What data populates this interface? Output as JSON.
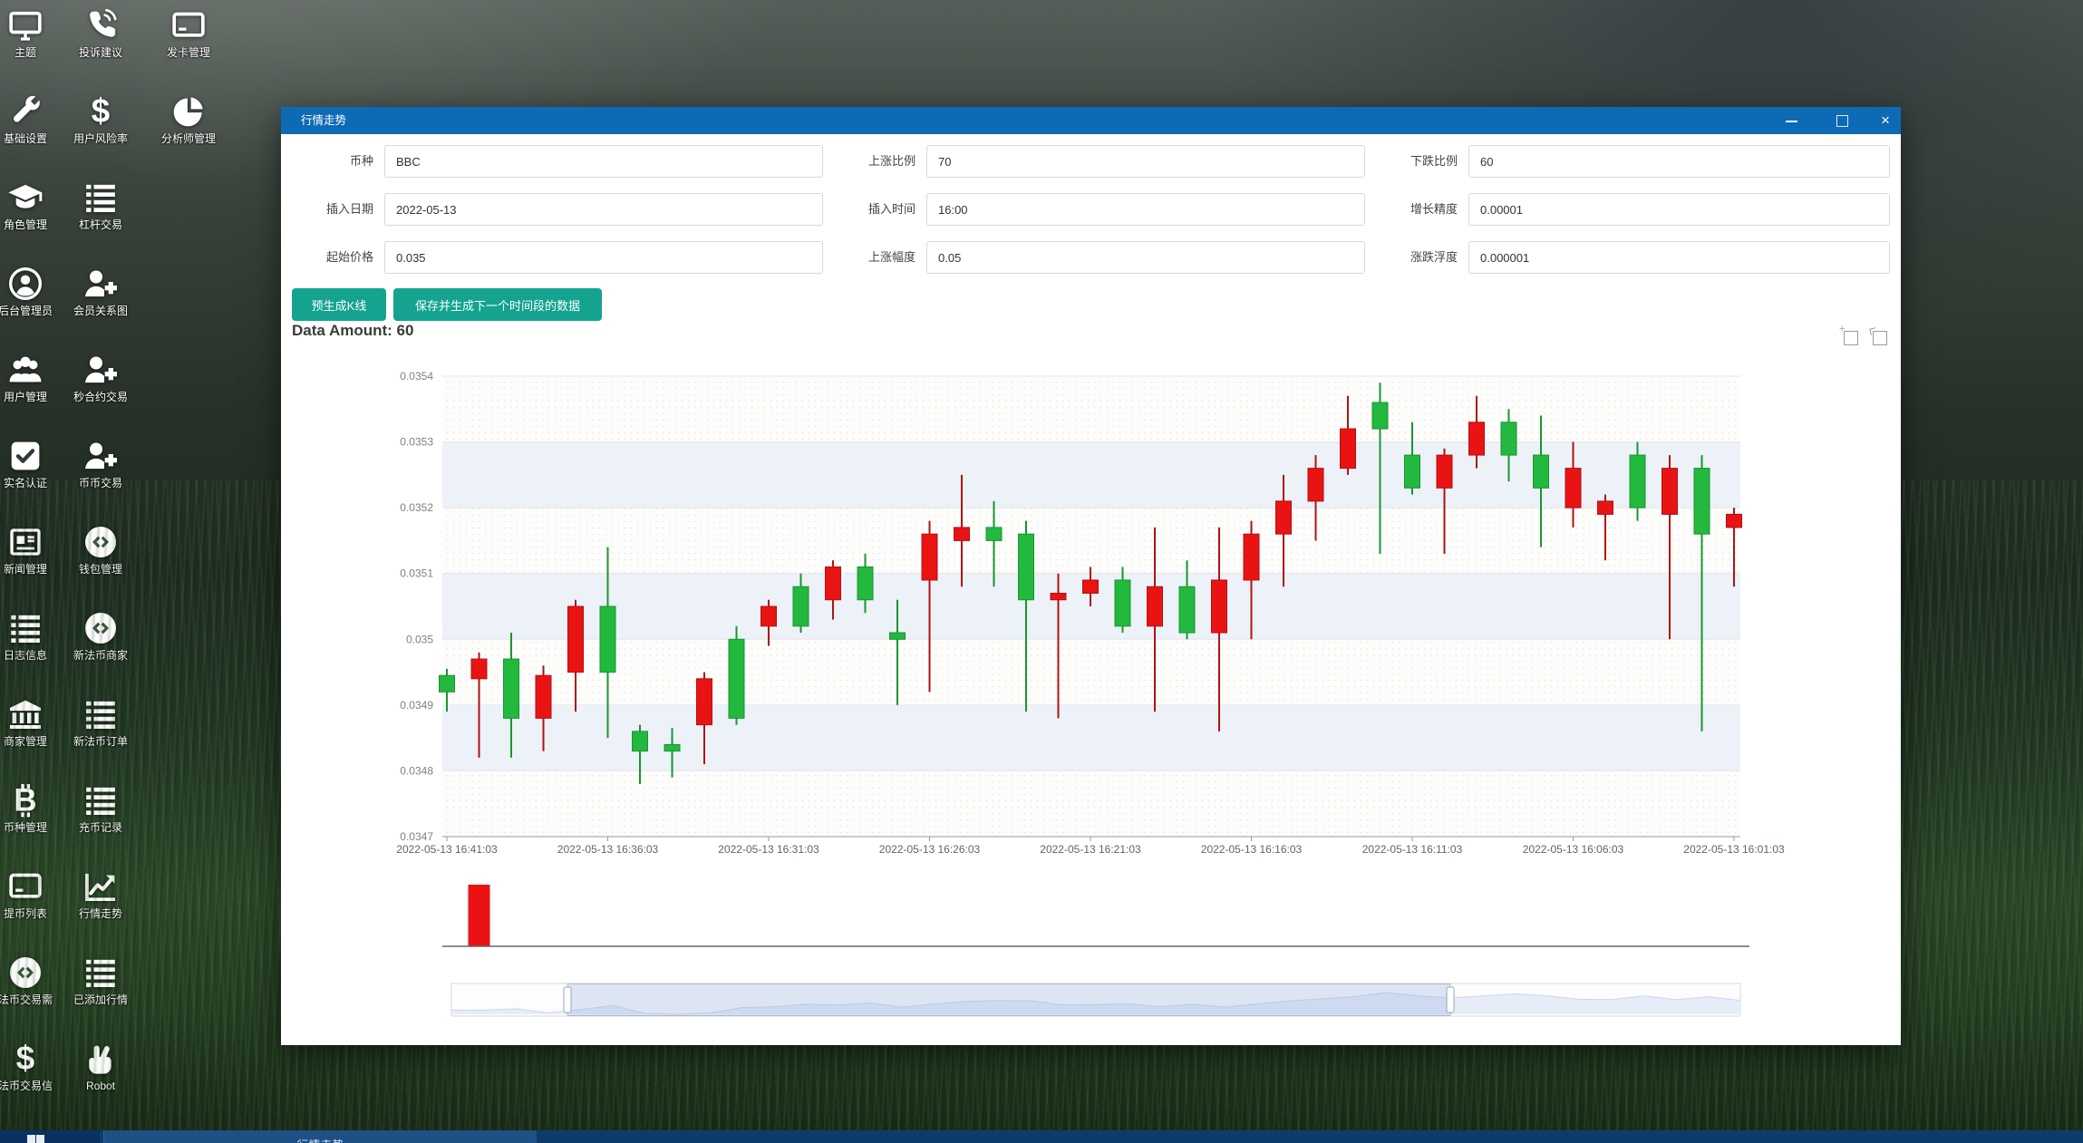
{
  "desktop": {
    "shortcuts": [
      {
        "label": "主题",
        "icon": "monitor-icon"
      },
      {
        "label": "投诉建议",
        "icon": "phone-icon"
      },
      {
        "label": "发卡管理",
        "icon": "credit-card-icon"
      },
      {
        "label": "基础设置",
        "icon": "wrench-icon"
      },
      {
        "label": "用户风险率",
        "icon": "dollar-icon"
      },
      {
        "label": "分析师管理",
        "icon": "pie-chart-icon"
      },
      {
        "label": "角色管理",
        "icon": "graduation-cap-icon"
      },
      {
        "label": "杠杆交易",
        "icon": "list-icon"
      },
      {
        "label": "后台管理员",
        "icon": "user-circle-icon"
      },
      {
        "label": "会员关系图",
        "icon": "user-plus-icon"
      },
      {
        "label": "用户管理",
        "icon": "users-icon"
      },
      {
        "label": "秒合约交易",
        "icon": "user-plus-icon"
      },
      {
        "label": "实名认证",
        "icon": "check-square-icon"
      },
      {
        "label": "币币交易",
        "icon": "user-plus-icon"
      },
      {
        "label": "新闻管理",
        "icon": "newspaper-icon"
      },
      {
        "label": "钱包管理",
        "icon": "coin-circle-icon"
      },
      {
        "label": "日志信息",
        "icon": "list-icon"
      },
      {
        "label": "新法币商家",
        "icon": "coin-circle-icon"
      },
      {
        "label": "商家管理",
        "icon": "bank-icon"
      },
      {
        "label": "新法币订单",
        "icon": "list-icon"
      },
      {
        "label": "币种管理",
        "icon": "bitcoin-icon"
      },
      {
        "label": "充币记录",
        "icon": "list-icon"
      },
      {
        "label": "提币列表",
        "icon": "credit-card-icon"
      },
      {
        "label": "行情走势",
        "icon": "chart-line-icon"
      },
      {
        "label": "法币交易需",
        "icon": "coin-circle-icon"
      },
      {
        "label": "已添加行情",
        "icon": "list-icon"
      },
      {
        "label": "法币交易信",
        "icon": "dollar-icon"
      },
      {
        "label": "Robot",
        "icon": "victory-hand-icon"
      }
    ],
    "taskbar": {
      "active_task": "行情走势"
    }
  },
  "window": {
    "title": "行情走势",
    "close_glyph": "×",
    "form": {
      "fields": [
        {
          "label": "币种",
          "value": "BBC"
        },
        {
          "label": "上涨比例",
          "value": "70"
        },
        {
          "label": "下跌比例",
          "value": "60"
        },
        {
          "label": "插入日期",
          "value": "2022-05-13"
        },
        {
          "label": "插入时间",
          "value": "16:00"
        },
        {
          "label": "增长精度",
          "value": "0.00001"
        },
        {
          "label": "起始价格",
          "value": "0.035"
        },
        {
          "label": "上涨幅度",
          "value": "0.05"
        },
        {
          "label": "涨跌浮度",
          "value": "0.000001"
        }
      ],
      "buttons": [
        {
          "label": "预生成K线"
        },
        {
          "label": "保存并生成下一个时间段的数据"
        }
      ]
    },
    "data_amount_label": "Data Amount: 60",
    "chart_data": {
      "type": "candlestick",
      "title": "Data Amount: 60",
      "ylim": [
        0.0347,
        0.0354
      ],
      "y_ticks": [
        "0.0354",
        "0.0353",
        "0.0352",
        "0.0351",
        "0.035",
        "0.0349",
        "0.0348",
        "0.0347"
      ],
      "x_ticks": [
        "2022-05-13 16:41:03",
        "2022-05-13 16:36:03",
        "2022-05-13 16:31:03",
        "2022-05-13 16:26:03",
        "2022-05-13 16:21:03",
        "2022-05-13 16:16:03",
        "2022-05-13 16:11:03",
        "2022-05-13 16:06:03",
        "2022-05-13 16:01:03"
      ],
      "time_direction": "descending-left-to-right",
      "candles_ohlc_as_open_close_low_high": [
        [
          0.03492,
          0.034945,
          0.03489,
          0.034955
        ],
        [
          0.03497,
          0.03494,
          0.03482,
          0.03498
        ],
        [
          0.03488,
          0.03497,
          0.03482,
          0.03501
        ],
        [
          0.034945,
          0.03488,
          0.03483,
          0.03496
        ],
        [
          0.03505,
          0.03495,
          0.03489,
          0.03506
        ],
        [
          0.03495,
          0.03505,
          0.03485,
          0.03514
        ],
        [
          0.03483,
          0.03486,
          0.03478,
          0.03487
        ],
        [
          0.03483,
          0.03484,
          0.03479,
          0.034865
        ],
        [
          0.03494,
          0.03487,
          0.03481,
          0.03495
        ],
        [
          0.03488,
          0.035,
          0.03487,
          0.03502
        ],
        [
          0.03505,
          0.03502,
          0.03499,
          0.03506
        ],
        [
          0.03502,
          0.03508,
          0.03501,
          0.0351
        ],
        [
          0.03511,
          0.03506,
          0.03503,
          0.03512
        ],
        [
          0.03506,
          0.03511,
          0.03504,
          0.03513
        ],
        [
          0.035,
          0.03501,
          0.0349,
          0.03506
        ],
        [
          0.03516,
          0.03509,
          0.03492,
          0.03518
        ],
        [
          0.03517,
          0.03515,
          0.03508,
          0.03525
        ],
        [
          0.03515,
          0.03517,
          0.03508,
          0.03521
        ],
        [
          0.03506,
          0.03516,
          0.03489,
          0.03518
        ],
        [
          0.03507,
          0.03506,
          0.03488,
          0.0351
        ],
        [
          0.03509,
          0.03507,
          0.03505,
          0.03511
        ],
        [
          0.03502,
          0.03509,
          0.03501,
          0.03511
        ],
        [
          0.03508,
          0.03502,
          0.03489,
          0.03517
        ],
        [
          0.03501,
          0.03508,
          0.035,
          0.03512
        ],
        [
          0.03509,
          0.03501,
          0.03486,
          0.03517
        ],
        [
          0.03516,
          0.03509,
          0.035,
          0.03518
        ],
        [
          0.03521,
          0.03516,
          0.03508,
          0.03525
        ],
        [
          0.03526,
          0.03521,
          0.03515,
          0.03528
        ],
        [
          0.03532,
          0.03526,
          0.03525,
          0.03537
        ],
        [
          0.03532,
          0.03536,
          0.03513,
          0.03539
        ],
        [
          0.03523,
          0.03528,
          0.03522,
          0.03533
        ],
        [
          0.03528,
          0.03523,
          0.03513,
          0.03529
        ],
        [
          0.03533,
          0.03528,
          0.03526,
          0.03537
        ],
        [
          0.03528,
          0.03533,
          0.03524,
          0.03535
        ],
        [
          0.03523,
          0.03528,
          0.03514,
          0.03534
        ],
        [
          0.03526,
          0.0352,
          0.03517,
          0.0353
        ],
        [
          0.03521,
          0.03519,
          0.03512,
          0.03522
        ],
        [
          0.0352,
          0.03528,
          0.03518,
          0.0353
        ],
        [
          0.03526,
          0.03519,
          0.035,
          0.03528
        ],
        [
          0.03516,
          0.03526,
          0.03486,
          0.03528
        ],
        [
          0.03519,
          0.03517,
          0.03508,
          0.0352
        ]
      ],
      "volume_bars": [
        {
          "index": 1,
          "color": "down",
          "height_frac": 1.0
        }
      ],
      "zoom_window_frac": [
        0.09,
        0.775
      ],
      "colors": {
        "up": "#23b83e",
        "up_border": "#18962f",
        "down": "#ea1313",
        "down_border": "#b01212",
        "band_blue": "#edf1f8",
        "grid": "#e3e6eb",
        "axis": "#999999",
        "tick_label": "#5c6570",
        "y_label": "#808080"
      },
      "legend_position": "none",
      "grid": true
    }
  },
  "ui_colors": {
    "titlebar": "#0d6ab5",
    "button_teal": "#14a38e",
    "taskbar": "#0d3c6b",
    "taskbar_active": "#1d5084"
  }
}
